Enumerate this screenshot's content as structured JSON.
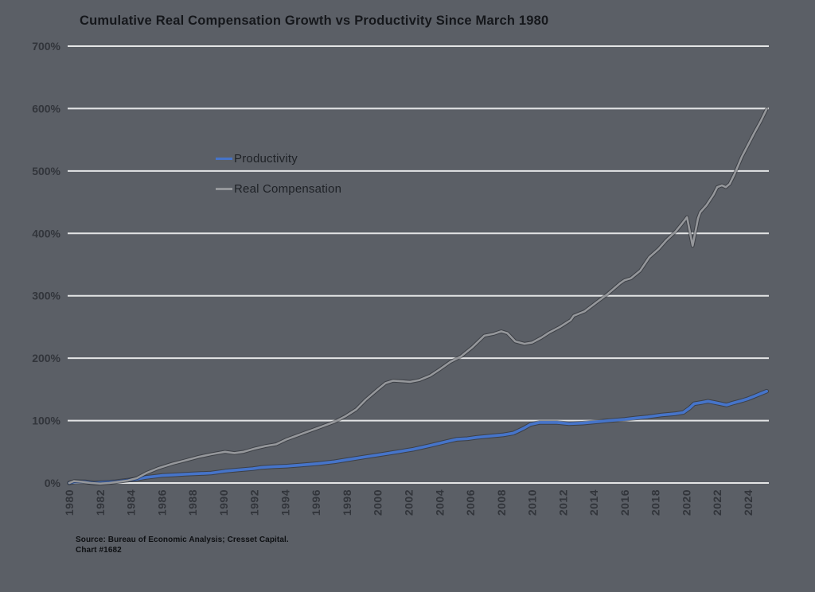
{
  "title": "Cumulative Real Compensation Growth vs Productivity Since March 1980",
  "source": {
    "line1": "Source: Bureau of Economic Analysis; Cresset Capital.",
    "line2": "Chart #1682"
  },
  "colors": {
    "background": "#5b5f66",
    "gridline": "#e4e5e6",
    "title_text": "#15171b",
    "tick_text": "#32353b",
    "legend_text": "#1e2126",
    "source_text": "#0e1013",
    "productivity": "#4674c9",
    "real_compensation": "#95979b"
  },
  "chart_data": {
    "type": "line",
    "title": "Cumulative Real Compensation Growth vs Productivity Since March 1980",
    "xlabel": "",
    "ylabel": "",
    "grid": true,
    "legend_position": "inside-upper-left",
    "xlim": [
      1980,
      2025.4
    ],
    "ylim": [
      0,
      700
    ],
    "y_ticks": [
      {
        "label": "700%",
        "value": 700
      },
      {
        "label": "600%",
        "value": 600
      },
      {
        "label": "500%",
        "value": 500
      },
      {
        "label": "400%",
        "value": 400
      },
      {
        "label": "300%",
        "value": 300
      },
      {
        "label": "200%",
        "value": 200
      },
      {
        "label": "100%",
        "value": 100
      },
      {
        "label": "0%",
        "value": 0
      }
    ],
    "x_ticks": [
      {
        "label": "1980",
        "year": 1980
      },
      {
        "label": "1982",
        "year": 1982
      },
      {
        "label": "1984",
        "year": 1984
      },
      {
        "label": "1986",
        "year": 1986
      },
      {
        "label": "1988",
        "year": 1988
      },
      {
        "label": "1990",
        "year": 1990
      },
      {
        "label": "1992",
        "year": 1992
      },
      {
        "label": "1994",
        "year": 1994
      },
      {
        "label": "1996",
        "year": 1996
      },
      {
        "label": "1998",
        "year": 1998
      },
      {
        "label": "2000",
        "year": 2000
      },
      {
        "label": "2002",
        "year": 2002
      },
      {
        "label": "2004",
        "year": 2004
      },
      {
        "label": "2006",
        "year": 2006
      },
      {
        "label": "2008",
        "year": 2008
      },
      {
        "label": "2010",
        "year": 2010
      },
      {
        "label": "2012",
        "year": 2012
      },
      {
        "label": "2014",
        "year": 2014
      },
      {
        "label": "2016",
        "year": 2016
      },
      {
        "label": "2018",
        "year": 2018
      },
      {
        "label": "2020",
        "year": 2020
      },
      {
        "label": "2022",
        "year": 2022
      },
      {
        "label": "2024",
        "year": 2024
      }
    ],
    "series": [
      {
        "name": "Productivity",
        "color": "#4674c9",
        "unit": "percent_cumulative_growth",
        "points": [
          [
            1980,
            0
          ],
          [
            1980.4,
            2
          ],
          [
            1981,
            2
          ],
          [
            1981.6,
            0
          ],
          [
            1982.3,
            1
          ],
          [
            1983,
            2
          ],
          [
            1983.6,
            4
          ],
          [
            1984.3,
            6
          ],
          [
            1985,
            9
          ],
          [
            1986,
            12
          ],
          [
            1986.8,
            13
          ],
          [
            1987.5,
            14
          ],
          [
            1988.4,
            15
          ],
          [
            1989.2,
            16
          ],
          [
            1990.1,
            19
          ],
          [
            1991,
            21
          ],
          [
            1991.9,
            23
          ],
          [
            1992.5,
            25
          ],
          [
            1993.2,
            26
          ],
          [
            1994.1,
            27
          ],
          [
            1995.1,
            29
          ],
          [
            1996.1,
            31
          ],
          [
            1997.2,
            34
          ],
          [
            1998.2,
            38
          ],
          [
            1999.2,
            42
          ],
          [
            2000.3,
            46
          ],
          [
            2001.3,
            50
          ],
          [
            2002.3,
            54
          ],
          [
            2003.4,
            60
          ],
          [
            2004.4,
            66
          ],
          [
            2005.1,
            70
          ],
          [
            2005.8,
            71
          ],
          [
            2006.4,
            73
          ],
          [
            2007.2,
            75
          ],
          [
            2008.1,
            77
          ],
          [
            2008.8,
            80
          ],
          [
            2009.4,
            87
          ],
          [
            2009.9,
            94
          ],
          [
            2010.5,
            97
          ],
          [
            2011.6,
            97
          ],
          [
            2012.4,
            95
          ],
          [
            2013.3,
            96
          ],
          [
            2014.2,
            98
          ],
          [
            2015,
            100
          ],
          [
            2016,
            102
          ],
          [
            2016.7,
            104
          ],
          [
            2017.5,
            106
          ],
          [
            2018.4,
            109
          ],
          [
            2019.3,
            111
          ],
          [
            2019.8,
            113
          ],
          [
            2020.2,
            120
          ],
          [
            2020.5,
            127
          ],
          [
            2021,
            129
          ],
          [
            2021.4,
            131
          ],
          [
            2021.8,
            129
          ],
          [
            2022.2,
            127
          ],
          [
            2022.6,
            125
          ],
          [
            2023,
            128
          ],
          [
            2023.6,
            132
          ],
          [
            2024,
            135
          ],
          [
            2024.4,
            139
          ],
          [
            2024.8,
            143
          ],
          [
            2025.2,
            147
          ]
        ]
      },
      {
        "name": "Real Compensation",
        "color": "#95979b",
        "unit": "percent_cumulative_growth",
        "points": [
          [
            1980,
            0
          ],
          [
            1980.3,
            3
          ],
          [
            1980.8,
            2
          ],
          [
            1981.4,
            0
          ],
          [
            1982,
            -1
          ],
          [
            1982.6,
            0
          ],
          [
            1983.2,
            2
          ],
          [
            1983.8,
            4
          ],
          [
            1984.4,
            8
          ],
          [
            1985,
            16
          ],
          [
            1985.8,
            24
          ],
          [
            1986.7,
            31
          ],
          [
            1987.5,
            36
          ],
          [
            1988.4,
            42
          ],
          [
            1989.2,
            46
          ],
          [
            1990.1,
            50
          ],
          [
            1990.7,
            48
          ],
          [
            1991.3,
            50
          ],
          [
            1992,
            55
          ],
          [
            1992.7,
            59
          ],
          [
            1993.4,
            62
          ],
          [
            1994.1,
            70
          ],
          [
            1995.1,
            79
          ],
          [
            1996.1,
            88
          ],
          [
            1997.2,
            98
          ],
          [
            1997.9,
            107
          ],
          [
            1998.6,
            118
          ],
          [
            1999.2,
            133
          ],
          [
            2000,
            150
          ],
          [
            2000.5,
            160
          ],
          [
            2001,
            164
          ],
          [
            2001.6,
            163
          ],
          [
            2002.1,
            162
          ],
          [
            2002.7,
            165
          ],
          [
            2003.4,
            172
          ],
          [
            2004,
            182
          ],
          [
            2004.7,
            194
          ],
          [
            2005.4,
            203
          ],
          [
            2006.1,
            217
          ],
          [
            2006.9,
            236
          ],
          [
            2007.5,
            239
          ],
          [
            2008,
            243
          ],
          [
            2008.4,
            240
          ],
          [
            2008.9,
            227
          ],
          [
            2009.5,
            223
          ],
          [
            2010,
            225
          ],
          [
            2010.6,
            233
          ],
          [
            2011.1,
            241
          ],
          [
            2011.8,
            250
          ],
          [
            2012.5,
            261
          ],
          [
            2012.7,
            268
          ],
          [
            2013.4,
            275
          ],
          [
            2014.2,
            290
          ],
          [
            2014.9,
            303
          ],
          [
            2015.7,
            320
          ],
          [
            2016,
            325
          ],
          [
            2016.4,
            328
          ],
          [
            2017,
            340
          ],
          [
            2017.6,
            362
          ],
          [
            2018.2,
            375
          ],
          [
            2018.7,
            389
          ],
          [
            2019.3,
            403
          ],
          [
            2019.7,
            415
          ],
          [
            2020.04,
            426
          ],
          [
            2020.4,
            380
          ],
          [
            2020.75,
            424
          ],
          [
            2020.9,
            434
          ],
          [
            2021.3,
            445
          ],
          [
            2021.75,
            462
          ],
          [
            2022,
            474
          ],
          [
            2022.3,
            477
          ],
          [
            2022.55,
            474
          ],
          [
            2022.8,
            479
          ],
          [
            2023.1,
            494
          ],
          [
            2023.6,
            523
          ],
          [
            2024,
            542
          ],
          [
            2024.4,
            561
          ],
          [
            2024.8,
            579
          ],
          [
            2025.2,
            599
          ]
        ]
      }
    ]
  }
}
